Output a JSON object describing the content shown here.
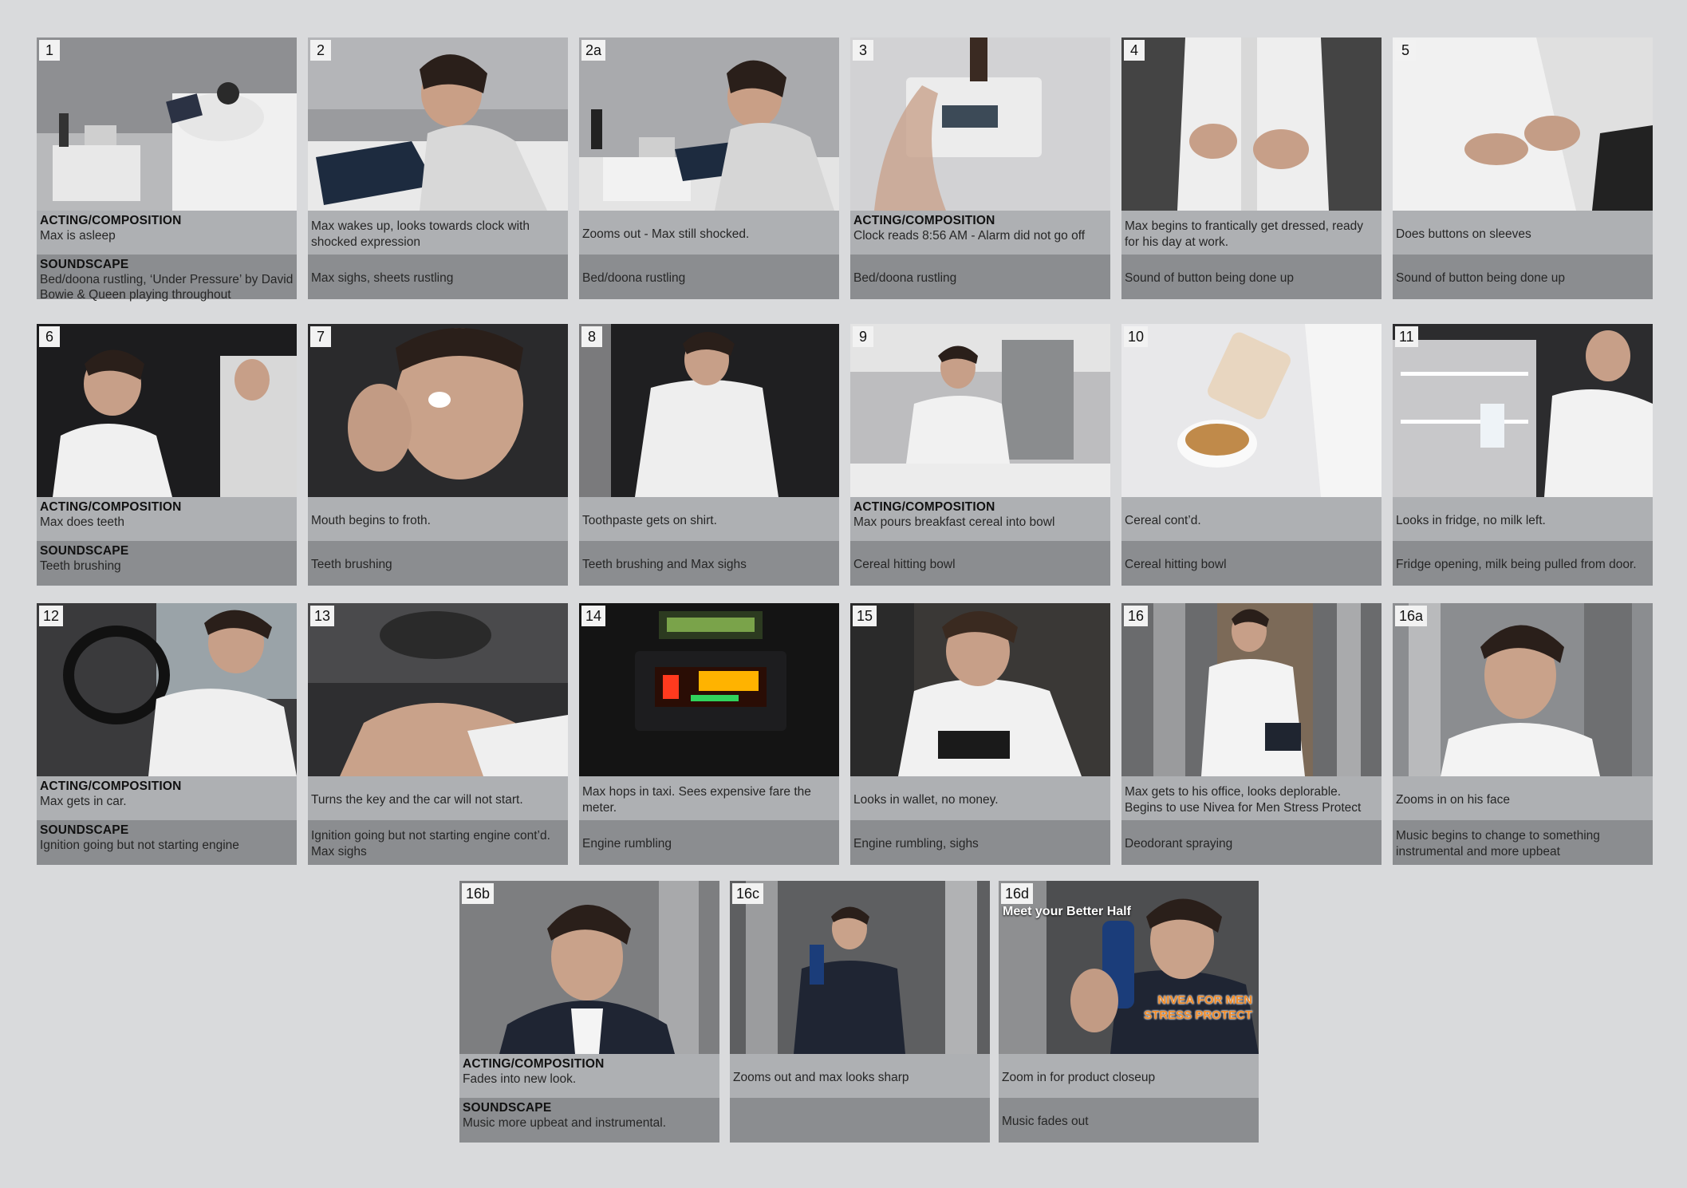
{
  "panels": [
    {
      "num": "1",
      "action_label": "ACTING/COMPOSITION",
      "action": "Max is asleep",
      "sound_label": "SOUNDSCAPE",
      "sound": "Bed/doona rustling, ‘Under Pressure’ by David Bowie & Queen playing throughout"
    },
    {
      "num": "2",
      "action": "Max wakes up, looks towards clock with shocked expression",
      "sound": "Max sighs, sheets rustling"
    },
    {
      "num": "2a",
      "action": "Zooms out - Max still shocked.",
      "sound": "Bed/doona rustling"
    },
    {
      "num": "3",
      "action_label": "ACTING/COMPOSITION",
      "action": "Clock reads 8:56 AM - Alarm did not go off",
      "sound": "Bed/doona rustling"
    },
    {
      "num": "4",
      "action": "Max begins to frantically get dressed, ready for his day at work.",
      "sound": "Sound of button being done up"
    },
    {
      "num": "5",
      "action": "Does buttons on sleeves",
      "sound": "Sound of button being done up"
    },
    {
      "num": "6",
      "action_label": "ACTING/COMPOSITION",
      "action": "Max does teeth",
      "sound_label": "SOUNDSCAPE",
      "sound": "Teeth brushing"
    },
    {
      "num": "7",
      "action": "Mouth begins to froth.",
      "sound": "Teeth brushing"
    },
    {
      "num": "8",
      "action": "Toothpaste gets on shirt.",
      "sound": "Teeth brushing and Max sighs"
    },
    {
      "num": "9",
      "action_label": "ACTING/COMPOSITION",
      "action": "Max pours breakfast cereal into bowl",
      "sound": "Cereal hitting bowl"
    },
    {
      "num": "10",
      "action": "Cereal cont’d.",
      "sound": "Cereal hitting bowl"
    },
    {
      "num": "11",
      "action": "Looks in fridge, no milk left.",
      "sound": "Fridge opening, milk being pulled from door."
    },
    {
      "num": "12",
      "action_label": "ACTING/COMPOSITION",
      "action": "Max gets in car.",
      "sound_label": "SOUNDSCAPE",
      "sound": "Ignition going but not starting engine"
    },
    {
      "num": "13",
      "action": "Turns the key and the car will not start.",
      "sound": "Ignition going but not starting engine cont’d. Max sighs"
    },
    {
      "num": "14",
      "action": "Max hops in taxi. Sees expensive fare the meter.",
      "sound": "Engine rumbling"
    },
    {
      "num": "15",
      "action": "Looks in wallet, no money.",
      "sound": "Engine rumbling, sighs"
    },
    {
      "num": "16",
      "action": "Max gets to his office, looks deplorable. Begins to use Nivea for Men Stress Protect",
      "sound": "Deodorant spraying"
    },
    {
      "num": "16a",
      "action": "Zooms in on his face",
      "sound": "Music begins to change to something instrumental and more upbeat"
    },
    {
      "num": "16b",
      "action_label": "ACTING/COMPOSITION",
      "action": "Fades into new look.",
      "sound_label": "SOUNDSCAPE",
      "sound": "Music more upbeat and instrumental."
    },
    {
      "num": "16c",
      "action": "Zooms out and max looks sharp",
      "sound": ""
    },
    {
      "num": "16d",
      "action": "Zoom in for product closeup",
      "sound": "Music fades out",
      "overlay_title": "Meet your Better Half",
      "overlay_brand_1": "NIVEA FOR MEN",
      "overlay_brand_2": "STRESS PROTECT"
    }
  ],
  "colors": {
    "background": "#d9dadc",
    "action_bg": "#aeb0b3",
    "sound_bg": "#8b8d90",
    "brand_orange": "#f28c28"
  }
}
